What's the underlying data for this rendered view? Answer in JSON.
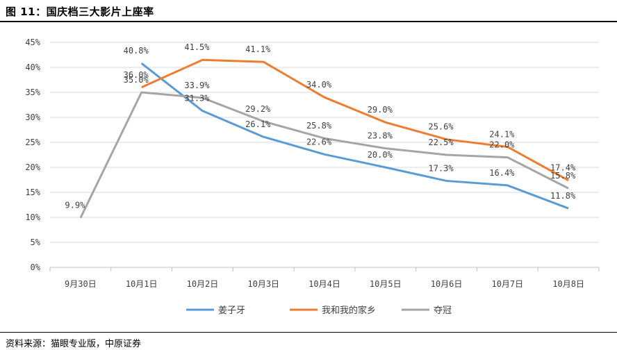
{
  "figure": {
    "title": "图 11：国庆档三大影片上座率",
    "source": "资料来源：猫眼专业版，中原证券"
  },
  "chart_data": {
    "type": "line",
    "categories": [
      "9月30日",
      "10月1日",
      "10月2日",
      "10月3日",
      "10月4日",
      "10月5日",
      "10月6日",
      "10月7日",
      "10月8日"
    ],
    "ylim": [
      0,
      45
    ],
    "yticks": [
      "0%",
      "5%",
      "10%",
      "15%",
      "20%",
      "25%",
      "30%",
      "35%",
      "40%",
      "45%"
    ],
    "grid": true,
    "legend": "bottom",
    "series": [
      {
        "name": "姜子牙",
        "color": "#5b9bd5",
        "values": [
          null,
          40.8,
          31.3,
          26.1,
          22.6,
          20.0,
          17.3,
          16.4,
          11.8
        ],
        "labels": [
          null,
          "40.8%",
          "31.3%",
          "26.1%",
          "22.6%",
          "20.0%",
          "17.3%",
          "16.4%",
          "11.8%"
        ]
      },
      {
        "name": "我和我的家乡",
        "color": "#ed7d31",
        "values": [
          null,
          36.0,
          41.5,
          41.1,
          34.0,
          29.0,
          25.6,
          24.1,
          17.4
        ],
        "labels": [
          null,
          "36.0%",
          "41.5%",
          "41.1%",
          "34.0%",
          "29.0%",
          "25.6%",
          "24.1%",
          "17.4%"
        ]
      },
      {
        "name": "夺冠",
        "color": "#a5a5a5",
        "values": [
          9.9,
          35.0,
          33.9,
          29.2,
          25.8,
          23.8,
          22.5,
          22.0,
          15.8
        ],
        "labels": [
          "9.9%",
          "35.0%",
          "33.9%",
          "29.2%",
          "25.8%",
          "23.8%",
          "22.5%",
          "22.0%",
          "15.8%"
        ]
      }
    ]
  }
}
